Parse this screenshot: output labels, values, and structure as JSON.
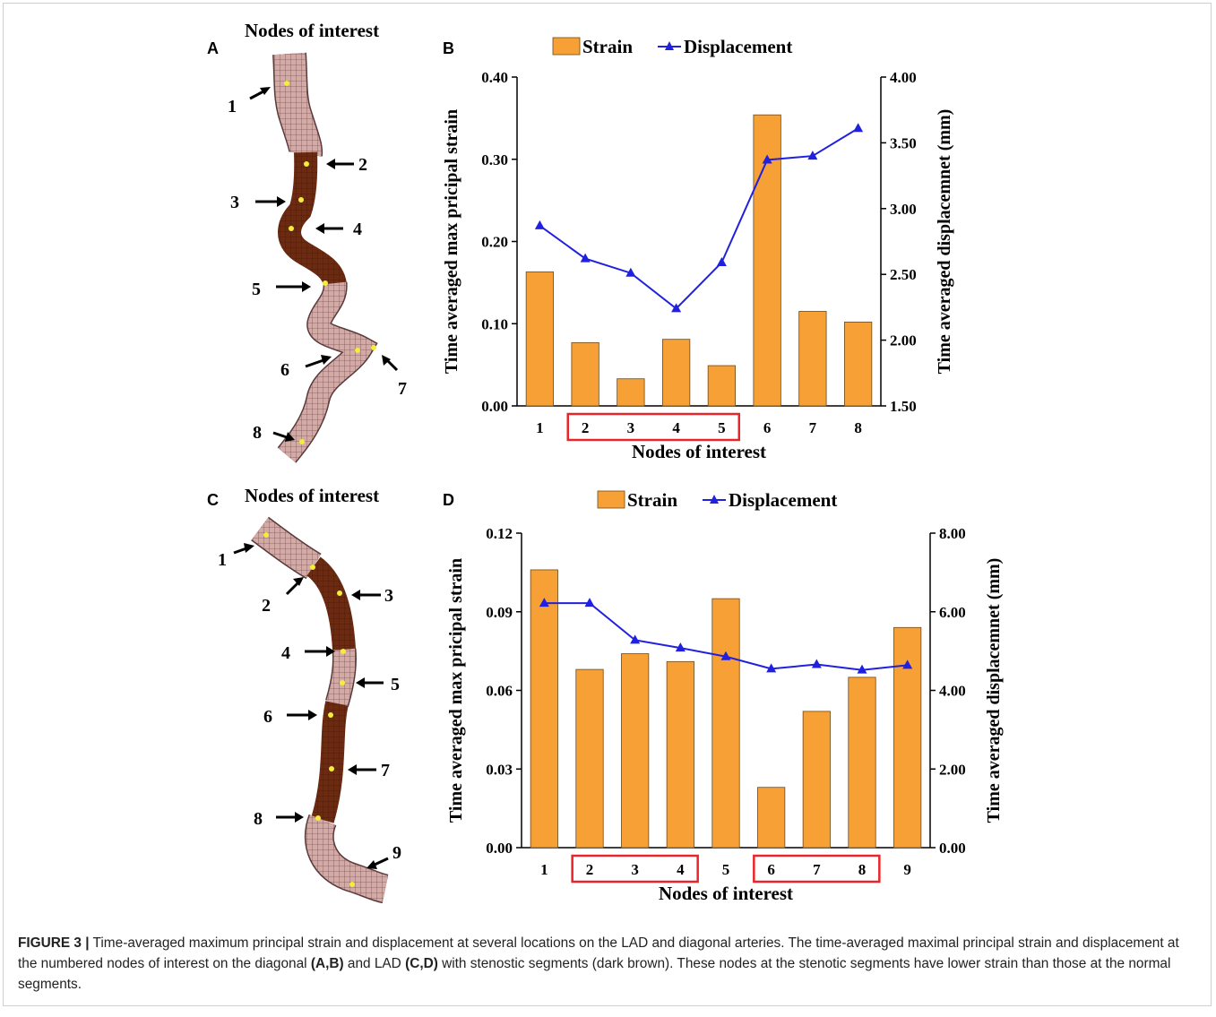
{
  "panels": {
    "A": {
      "letter": "A",
      "title": "Nodes of interest",
      "node_labels": [
        "1",
        "2",
        "3",
        "4",
        "5",
        "6",
        "7",
        "8"
      ]
    },
    "B": {
      "letter": "B"
    },
    "C": {
      "letter": "C",
      "title": "Nodes of interest",
      "node_labels": [
        "1",
        "2",
        "3",
        "4",
        "5",
        "6",
        "7",
        "8",
        "9"
      ]
    },
    "D": {
      "letter": "D"
    }
  },
  "colors": {
    "strain": "#F7A035",
    "displacement": "#2020E0",
    "highlight": "#E8252A",
    "stenotic": "#6E2A10",
    "normal": "#CFA6A2"
  },
  "chart_data": [
    {
      "type": "bar",
      "panel": "B",
      "legend": [
        "Strain",
        "Displacement"
      ],
      "legend_position": "top",
      "categories": [
        "1",
        "2",
        "3",
        "4",
        "5",
        "6",
        "7",
        "8"
      ],
      "series": [
        {
          "name": "Strain",
          "type": "bar",
          "axis": "left",
          "values": [
            0.163,
            0.077,
            0.033,
            0.081,
            0.049,
            0.354,
            0.115,
            0.102
          ]
        },
        {
          "name": "Displacement",
          "type": "line",
          "axis": "right",
          "values": [
            2.87,
            2.62,
            2.51,
            2.24,
            2.59,
            3.37,
            3.4,
            3.61
          ]
        }
      ],
      "xlabel": "Nodes of interest",
      "ylabel": "Time averaged max pricipal strain",
      "y2label": "Time averaged displacemnet (mm)",
      "ylim": [
        0,
        0.4
      ],
      "y2lim": [
        1.5,
        4.0
      ],
      "yticks": [
        "0.00",
        "0.10",
        "0.20",
        "0.30",
        "0.40"
      ],
      "y2ticks": [
        "1.50",
        "2.00",
        "2.50",
        "3.00",
        "3.50",
        "4.00"
      ],
      "highlight_groups": [
        [
          2,
          5
        ]
      ],
      "grid": false
    },
    {
      "type": "bar",
      "panel": "D",
      "legend": [
        "Strain",
        "Displacement"
      ],
      "legend_position": "top",
      "categories": [
        "1",
        "2",
        "3",
        "4",
        "5",
        "6",
        "7",
        "8",
        "9"
      ],
      "series": [
        {
          "name": "Strain",
          "type": "bar",
          "axis": "left",
          "values": [
            0.106,
            0.068,
            0.074,
            0.071,
            0.095,
            0.023,
            0.052,
            0.065,
            0.084
          ]
        },
        {
          "name": "Displacement",
          "type": "line",
          "axis": "right",
          "values": [
            6.22,
            6.22,
            5.28,
            5.08,
            4.86,
            4.55,
            4.66,
            4.52,
            4.64
          ]
        }
      ],
      "xlabel": "Nodes of interest",
      "ylabel": "Time averaged max pricipal strain",
      "y2label": "Time averaged displacemnet (mm)",
      "ylim": [
        0,
        0.12
      ],
      "y2lim": [
        0,
        8.0
      ],
      "yticks": [
        "0.00",
        "0.03",
        "0.06",
        "0.09",
        "0.12"
      ],
      "y2ticks": [
        "0.00",
        "2.00",
        "4.00",
        "6.00",
        "8.00"
      ],
      "highlight_groups": [
        [
          2,
          4
        ],
        [
          6,
          8
        ]
      ],
      "grid": false
    }
  ],
  "caption": {
    "label": "FIGURE 3 |",
    "text1": " Time-averaged maximum principal strain and displacement at several locations on the LAD and diagonal arteries. The time-averaged maximal principal strain and displacement at the numbered nodes of interest on the diagonal ",
    "ref1": "(A,B)",
    "text2": " and LAD ",
    "ref2": "(C,D)",
    "text3": " with stenostic segments (dark brown). These nodes at the stenotic segments have lower strain than those at the normal segments."
  }
}
